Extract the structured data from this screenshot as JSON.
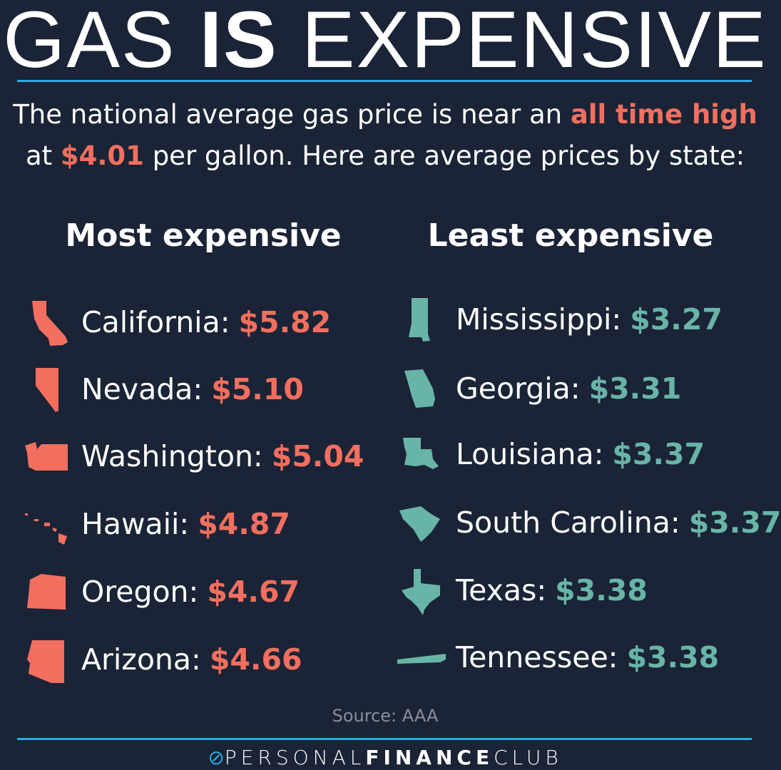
{
  "title": {
    "part1": "GAS ",
    "bold": "IS",
    "part2": " EXPENSIVE"
  },
  "subtitle": {
    "line1_pre": "The national average gas price is near an ",
    "line1_highlight": "all time high",
    "line2_pre": "at ",
    "line2_highlight": "$4.01",
    "line2_post": " per gallon. Here are average prices by state:"
  },
  "most_expensive": {
    "heading": "Most expensive",
    "items": [
      {
        "state": "California:",
        "price": "$5.82"
      },
      {
        "state": "Nevada:",
        "price": "$5.10"
      },
      {
        "state": "Washington:",
        "price": "$5.04"
      },
      {
        "state": "Hawaii:",
        "price": "$4.87"
      },
      {
        "state": "Oregon:",
        "price": "$4.67"
      },
      {
        "state": "Arizona:",
        "price": "$4.66"
      }
    ]
  },
  "least_expensive": {
    "heading": "Least expensive",
    "items": [
      {
        "state": "Mississippi:",
        "price": "$3.27"
      },
      {
        "state": "Georgia:",
        "price": "$3.31"
      },
      {
        "state": "Louisiana:",
        "price": "$3.37"
      },
      {
        "state": "South Carolina:",
        "price": "$3.37"
      },
      {
        "state": "Texas:",
        "price": "$3.38"
      },
      {
        "state": "Tennessee:",
        "price": "$3.38"
      }
    ]
  },
  "source": "Source: AAA",
  "logo": {
    "part1": "PERSONAL",
    "bold": "FINANCE",
    "part2": "CLUB"
  },
  "colors": {
    "background": "#1a2436",
    "expensive": "#f26f5f",
    "cheap": "#68b5a8",
    "divider": "#29abe2"
  }
}
